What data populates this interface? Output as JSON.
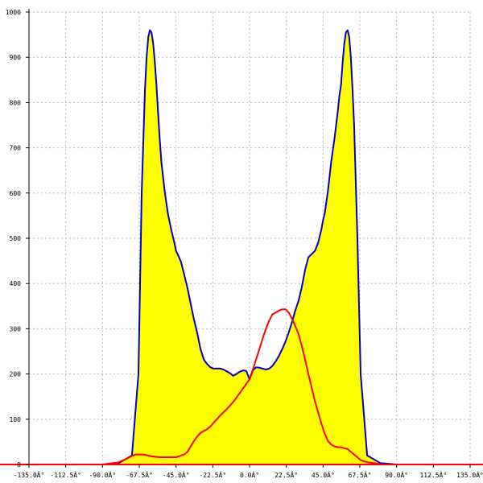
{
  "chart_data": {
    "type": "area",
    "title": "",
    "xlabel": "",
    "ylabel": "",
    "xlim": [
      -135,
      135
    ],
    "ylim": [
      0,
      1000
    ],
    "grid": true,
    "x_ticks": [
      -135,
      -112.5,
      -90,
      -67.5,
      -45,
      -22.5,
      0,
      22.5,
      45,
      67.5,
      90,
      112.5,
      135
    ],
    "x_tick_labels": [
      "-135.0Â°",
      "-112.5Â°",
      "-90.0Â°",
      "-67.5Â°",
      "-45.0Â°",
      "-22.5Â°",
      "0.0Â°",
      "22.5Â°",
      "45.0Â°",
      "67.5Â°",
      "90.0Â°",
      "112.5Â°",
      "135.0Â°"
    ],
    "y_ticks": [
      0,
      100,
      200,
      300,
      400,
      500,
      600,
      700,
      800,
      900,
      1000
    ],
    "y_tick_labels": [
      "0",
      "100",
      "200",
      "300",
      "400",
      "500",
      "600",
      "700",
      "800",
      "900",
      "1000"
    ],
    "series": [
      {
        "fill": "#ffff00",
        "color": "#0000cc",
        "style": "filled-area",
        "x": [
          -135,
          -90,
          -80,
          -72,
          -68,
          -66,
          -64,
          -63,
          -62,
          -61,
          -60,
          -59,
          -58,
          -57,
          -56,
          -55,
          -54,
          -52,
          -50,
          -48,
          -46,
          -45,
          -44,
          -42,
          -40,
          -38,
          -36,
          -34,
          -32,
          -30,
          -28,
          -26,
          -24,
          -22,
          -20,
          -18,
          -16,
          -14,
          -12,
          -10,
          -8,
          -6,
          -4,
          -2,
          0,
          2,
          4,
          6,
          8,
          10,
          12,
          14,
          16,
          18,
          20,
          22,
          24,
          26,
          28,
          30,
          32,
          34,
          36,
          38,
          40,
          42,
          44,
          45,
          46,
          48,
          50,
          52,
          54,
          55,
          56,
          57,
          58,
          59,
          60,
          61,
          62,
          63,
          64,
          66,
          68,
          72,
          80,
          90,
          135
        ],
        "y": [
          0,
          0,
          3,
          20,
          200,
          600,
          830,
          900,
          945,
          960,
          955,
          930,
          890,
          840,
          780,
          720,
          670,
          605,
          555,
          520,
          490,
          472,
          465,
          448,
          420,
          390,
          355,
          320,
          290,
          255,
          232,
          222,
          215,
          212,
          212,
          212,
          210,
          206,
          202,
          196,
          200,
          205,
          208,
          207,
          188,
          208,
          215,
          214,
          212,
          210,
          212,
          218,
          228,
          240,
          255,
          272,
          292,
          315,
          340,
          362,
          392,
          430,
          458,
          465,
          472,
          490,
          520,
          540,
          555,
          605,
          670,
          720,
          780,
          815,
          840,
          890,
          930,
          955,
          960,
          945,
          900,
          830,
          750,
          500,
          200,
          20,
          3,
          0,
          0
        ]
      },
      {
        "color": "#ff0000",
        "style": "line",
        "x": [
          -135,
          -90,
          -80,
          -74,
          -70,
          -65,
          -60,
          -55,
          -50,
          -45,
          -40,
          -38,
          -36,
          -34,
          -32,
          -30,
          -28,
          -26,
          -24,
          -22,
          -20,
          -18,
          -16,
          -14,
          -12,
          -10,
          -8,
          -6,
          -4,
          -2,
          0,
          2,
          4,
          6,
          8,
          10,
          12,
          14,
          16,
          18,
          20,
          22,
          24,
          26,
          28,
          30,
          32,
          34,
          36,
          38,
          40,
          42,
          44,
          46,
          48,
          50,
          52,
          54,
          56,
          58,
          60,
          62,
          64,
          66,
          68,
          70,
          72,
          74,
          76,
          78,
          80,
          90,
          135
        ],
        "y": [
          0,
          0,
          5,
          15,
          22,
          22,
          18,
          16,
          16,
          16,
          22,
          28,
          40,
          52,
          62,
          70,
          74,
          78,
          84,
          92,
          100,
          108,
          115,
          122,
          130,
          138,
          148,
          158,
          168,
          178,
          188,
          210,
          232,
          255,
          278,
          300,
          318,
          332,
          336,
          340,
          343,
          343,
          336,
          322,
          306,
          288,
          262,
          232,
          200,
          170,
          140,
          115,
          90,
          68,
          52,
          44,
          40,
          38,
          38,
          36,
          34,
          28,
          22,
          16,
          10,
          7,
          5,
          4,
          3,
          2,
          0,
          0,
          0
        ]
      }
    ]
  }
}
